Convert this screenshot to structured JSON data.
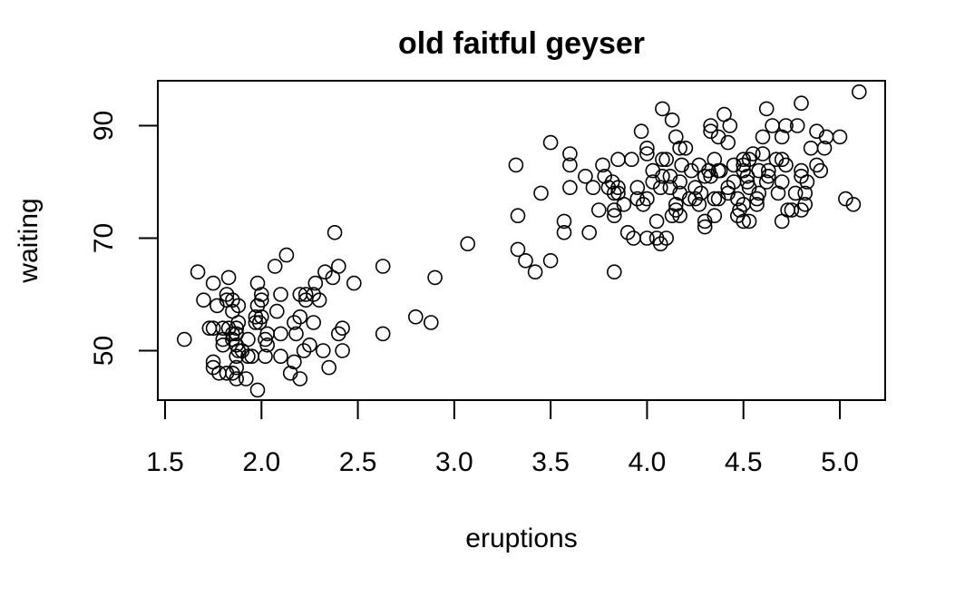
{
  "chart_data": {
    "type": "scatter",
    "title": "old faitful geyser",
    "xlabel": "eruptions",
    "ylabel": "waiting",
    "xlim": [
      1.5,
      5.2
    ],
    "ylim": [
      43,
      96
    ],
    "xticks": [
      1.5,
      2.0,
      2.5,
      3.0,
      3.5,
      4.0,
      4.5,
      5.0
    ],
    "xtick_labels": [
      "1.5",
      "2.0",
      "2.5",
      "3.0",
      "3.5",
      "4.0",
      "4.5",
      "5.0"
    ],
    "yticks": [
      50,
      70,
      90
    ],
    "ytick_labels": [
      "50",
      "70",
      "90"
    ],
    "grid": false,
    "legend": "none",
    "marker": "open-circle",
    "colors": {
      "points": "#000000",
      "axes": "#000000",
      "background": "#ffffff"
    },
    "points": [
      [
        1.6,
        52
      ],
      [
        1.67,
        64
      ],
      [
        1.7,
        59
      ],
      [
        1.73,
        54
      ],
      [
        1.75,
        62
      ],
      [
        1.75,
        54
      ],
      [
        1.75,
        48
      ],
      [
        1.75,
        47
      ],
      [
        1.77,
        58
      ],
      [
        1.78,
        46
      ],
      [
        1.8,
        52
      ],
      [
        1.8,
        54
      ],
      [
        1.8,
        51
      ],
      [
        1.82,
        60
      ],
      [
        1.82,
        46
      ],
      [
        1.82,
        59
      ],
      [
        1.83,
        63
      ],
      [
        1.83,
        54
      ],
      [
        1.85,
        46
      ],
      [
        1.85,
        57
      ],
      [
        1.85,
        53
      ],
      [
        1.85,
        59
      ],
      [
        1.85,
        52
      ],
      [
        1.87,
        45
      ],
      [
        1.87,
        51
      ],
      [
        1.87,
        53
      ],
      [
        1.87,
        54
      ],
      [
        1.87,
        47
      ],
      [
        1.87,
        49
      ],
      [
        1.88,
        55
      ],
      [
        1.88,
        50
      ],
      [
        1.88,
        58
      ],
      [
        1.9,
        50
      ],
      [
        1.92,
        45
      ],
      [
        1.93,
        49
      ],
      [
        1.93,
        52
      ],
      [
        1.95,
        49
      ],
      [
        1.97,
        56
      ],
      [
        1.97,
        55
      ],
      [
        1.98,
        62
      ],
      [
        1.98,
        43
      ],
      [
        1.98,
        58
      ],
      [
        1.99,
        55
      ],
      [
        2.0,
        59
      ],
      [
        2.0,
        56
      ],
      [
        2.0,
        60
      ],
      [
        2.02,
        52
      ],
      [
        2.02,
        49
      ],
      [
        2.03,
        53
      ],
      [
        2.03,
        51
      ],
      [
        2.07,
        65
      ],
      [
        2.08,
        57
      ],
      [
        2.1,
        49
      ],
      [
        2.1,
        60
      ],
      [
        2.1,
        53
      ],
      [
        2.13,
        67
      ],
      [
        2.15,
        46
      ],
      [
        2.17,
        48
      ],
      [
        2.17,
        55
      ],
      [
        2.18,
        53
      ],
      [
        2.2,
        56
      ],
      [
        2.2,
        45
      ],
      [
        2.2,
        60
      ],
      [
        2.22,
        50
      ],
      [
        2.23,
        59
      ],
      [
        2.23,
        60
      ],
      [
        2.25,
        51
      ],
      [
        2.27,
        55
      ],
      [
        2.27,
        60
      ],
      [
        2.28,
        62
      ],
      [
        2.3,
        59
      ],
      [
        2.32,
        50
      ],
      [
        2.33,
        64
      ],
      [
        2.35,
        47
      ],
      [
        2.37,
        63
      ],
      [
        2.38,
        71
      ],
      [
        2.4,
        53
      ],
      [
        2.4,
        65
      ],
      [
        2.42,
        54
      ],
      [
        2.42,
        50
      ],
      [
        2.48,
        62
      ],
      [
        2.63,
        53
      ],
      [
        2.63,
        65
      ],
      [
        2.8,
        56
      ],
      [
        2.88,
        55
      ],
      [
        2.9,
        63
      ],
      [
        3.07,
        69
      ],
      [
        3.32,
        83
      ],
      [
        3.33,
        74
      ],
      [
        3.33,
        68
      ],
      [
        3.37,
        66
      ],
      [
        3.42,
        64
      ],
      [
        3.45,
        78
      ],
      [
        3.5,
        66
      ],
      [
        3.5,
        87
      ],
      [
        3.57,
        73
      ],
      [
        3.57,
        71
      ],
      [
        3.6,
        85
      ],
      [
        3.6,
        83
      ],
      [
        3.6,
        79
      ],
      [
        3.68,
        81
      ],
      [
        3.7,
        71
      ],
      [
        3.72,
        79
      ],
      [
        3.75,
        75
      ],
      [
        3.77,
        83
      ],
      [
        3.78,
        81
      ],
      [
        3.8,
        79
      ],
      [
        3.82,
        80
      ],
      [
        3.83,
        64
      ],
      [
        3.83,
        74
      ],
      [
        3.83,
        75
      ],
      [
        3.83,
        78
      ],
      [
        3.85,
        79
      ],
      [
        3.85,
        84
      ],
      [
        3.85,
        78
      ],
      [
        3.88,
        76
      ],
      [
        3.9,
        71
      ],
      [
        3.92,
        84
      ],
      [
        3.93,
        70
      ],
      [
        3.95,
        79
      ],
      [
        3.95,
        77
      ],
      [
        3.97,
        89
      ],
      [
        3.98,
        76
      ],
      [
        4.0,
        86
      ],
      [
        4.0,
        85
      ],
      [
        4.0,
        70
      ],
      [
        4.0,
        77
      ],
      [
        4.03,
        80
      ],
      [
        4.03,
        82
      ],
      [
        4.05,
        73
      ],
      [
        4.05,
        70
      ],
      [
        4.07,
        69
      ],
      [
        4.07,
        79
      ],
      [
        4.08,
        81
      ],
      [
        4.08,
        84
      ],
      [
        4.08,
        93
      ],
      [
        4.1,
        70
      ],
      [
        4.1,
        84
      ],
      [
        4.12,
        81
      ],
      [
        4.12,
        79
      ],
      [
        4.13,
        74
      ],
      [
        4.13,
        91
      ],
      [
        4.15,
        75
      ],
      [
        4.15,
        76
      ],
      [
        4.15,
        88
      ],
      [
        4.17,
        86
      ],
      [
        4.17,
        74
      ],
      [
        4.17,
        78
      ],
      [
        4.17,
        80
      ],
      [
        4.18,
        83
      ],
      [
        4.2,
        86
      ],
      [
        4.22,
        77
      ],
      [
        4.23,
        82
      ],
      [
        4.25,
        77
      ],
      [
        4.25,
        79
      ],
      [
        4.27,
        76
      ],
      [
        4.27,
        83
      ],
      [
        4.28,
        78
      ],
      [
        4.3,
        72
      ],
      [
        4.3,
        73
      ],
      [
        4.3,
        81
      ],
      [
        4.32,
        82
      ],
      [
        4.33,
        90
      ],
      [
        4.33,
        89
      ],
      [
        4.33,
        81
      ],
      [
        4.35,
        84
      ],
      [
        4.35,
        74
      ],
      [
        4.35,
        77
      ],
      [
        4.37,
        82
      ],
      [
        4.37,
        88
      ],
      [
        4.37,
        77
      ],
      [
        4.38,
        82
      ],
      [
        4.4,
        92
      ],
      [
        4.42,
        87
      ],
      [
        4.42,
        79
      ],
      [
        4.42,
        78
      ],
      [
        4.43,
        90
      ],
      [
        4.45,
        83
      ],
      [
        4.45,
        80
      ],
      [
        4.47,
        77
      ],
      [
        4.47,
        74
      ],
      [
        4.48,
        75
      ],
      [
        4.5,
        73
      ],
      [
        4.5,
        76
      ],
      [
        4.5,
        82
      ],
      [
        4.5,
        84
      ],
      [
        4.5,
        83
      ],
      [
        4.52,
        81
      ],
      [
        4.52,
        80
      ],
      [
        4.53,
        84
      ],
      [
        4.53,
        73
      ],
      [
        4.53,
        79
      ],
      [
        4.55,
        85
      ],
      [
        4.57,
        77
      ],
      [
        4.57,
        76
      ],
      [
        4.58,
        82
      ],
      [
        4.58,
        78
      ],
      [
        4.6,
        85
      ],
      [
        4.6,
        88
      ],
      [
        4.62,
        93
      ],
      [
        4.62,
        80
      ],
      [
        4.63,
        81
      ],
      [
        4.63,
        82
      ],
      [
        4.65,
        90
      ],
      [
        4.67,
        84
      ],
      [
        4.68,
        78
      ],
      [
        4.7,
        73
      ],
      [
        4.7,
        88
      ],
      [
        4.7,
        84
      ],
      [
        4.7,
        80
      ],
      [
        4.72,
        90
      ],
      [
        4.72,
        83
      ],
      [
        4.73,
        75
      ],
      [
        4.75,
        75
      ],
      [
        4.77,
        78
      ],
      [
        4.78,
        90
      ],
      [
        4.8,
        94
      ],
      [
        4.8,
        75
      ],
      [
        4.8,
        81
      ],
      [
        4.8,
        82
      ],
      [
        4.82,
        76
      ],
      [
        4.82,
        78
      ],
      [
        4.83,
        80
      ],
      [
        4.85,
        86
      ],
      [
        4.88,
        83
      ],
      [
        4.88,
        89
      ],
      [
        4.9,
        82
      ],
      [
        4.92,
        86
      ],
      [
        4.93,
        88
      ],
      [
        5.0,
        88
      ],
      [
        5.03,
        77
      ],
      [
        5.07,
        76
      ],
      [
        5.1,
        96
      ]
    ]
  }
}
